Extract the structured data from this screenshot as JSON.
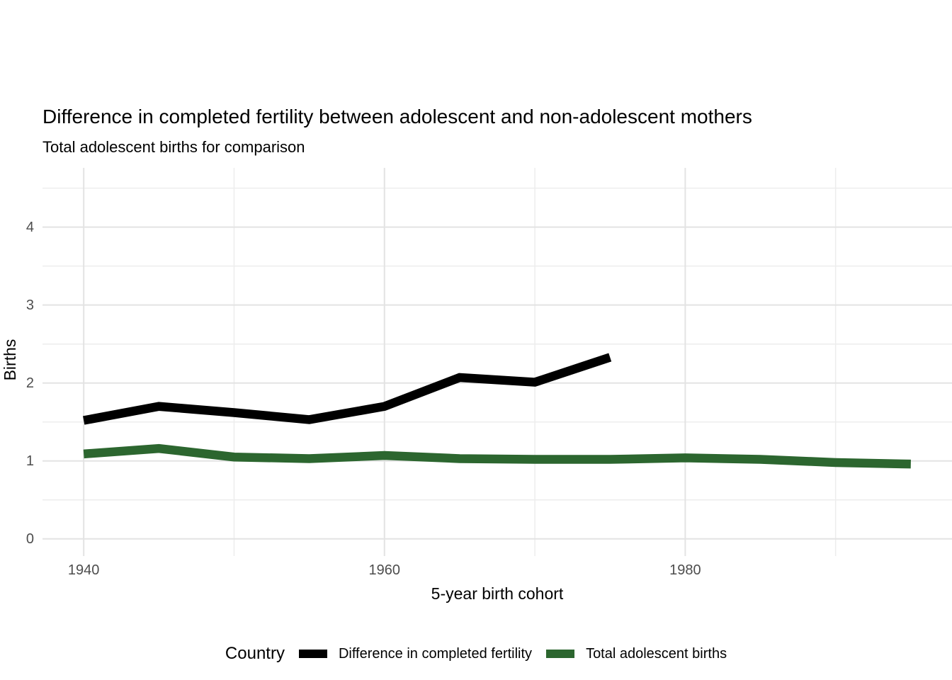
{
  "chart_data": {
    "type": "line",
    "title": "Difference in completed fertility between adolescent and non-adolescent mothers",
    "subtitle": "Total adolescent births for comparison",
    "xlabel": "5-year birth cohort",
    "ylabel": "Births",
    "legend_title": "Country",
    "legend_position": "bottom",
    "grid": true,
    "grid_major_color": "#e3e3e3",
    "grid_minor_color": "#ededed",
    "axis_text_color": "#4d4d4d",
    "x_ticks": [
      1940,
      1960,
      1980
    ],
    "x_minor_ticks": [
      1950,
      1970,
      1990
    ],
    "y_ticks": [
      0,
      1,
      2,
      3,
      4
    ],
    "y_minor_ticks": [
      0.5,
      1.5,
      2.5,
      3.5,
      4.5
    ],
    "xlim": [
      1937.26,
      1997.74
    ],
    "ylim": [
      -0.22,
      4.76
    ],
    "series": [
      {
        "name": "Difference in completed fertility",
        "color": "#000000",
        "x": [
          1940,
          1945,
          1950,
          1955,
          1960,
          1965,
          1970,
          1975
        ],
        "values": [
          1.52,
          1.7,
          1.62,
          1.53,
          1.7,
          2.07,
          2.01,
          2.33
        ]
      },
      {
        "name": "Total adolescent births",
        "color": "#2c662f",
        "x": [
          1940,
          1945,
          1950,
          1955,
          1960,
          1965,
          1970,
          1975,
          1980,
          1985,
          1990,
          1995
        ],
        "values": [
          1.09,
          1.16,
          1.05,
          1.03,
          1.07,
          1.03,
          1.02,
          1.02,
          1.04,
          1.02,
          0.98,
          0.96
        ]
      }
    ]
  }
}
